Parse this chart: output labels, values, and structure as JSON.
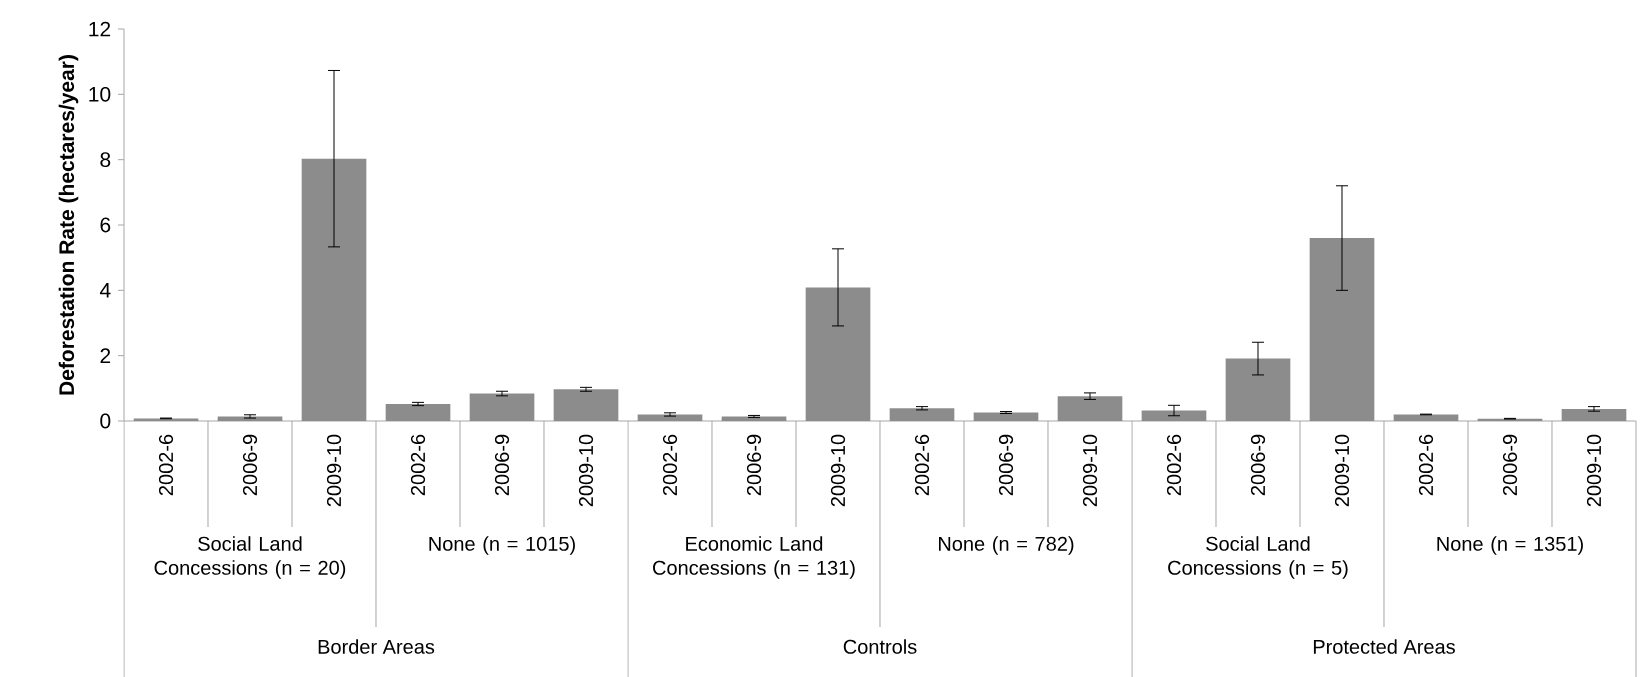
{
  "chart_data": {
    "type": "bar",
    "ylabel": "Deforestation Rate (hectares/year)",
    "categories": [
      "2002-6",
      "2006-9",
      "2009-10",
      "2002-6",
      "2006-9",
      "2009-10",
      "2002-6",
      "2006-9",
      "2009-10",
      "2002-6",
      "2006-9",
      "2009-10",
      "2002-6",
      "2006-9",
      "2009-10",
      "2002-6",
      "2006-9",
      "2009-10"
    ],
    "values": [
      0.08,
      0.14,
      8.03,
      0.52,
      0.84,
      0.97,
      0.2,
      0.14,
      4.09,
      0.39,
      0.26,
      0.76,
      0.32,
      1.91,
      5.6,
      0.2,
      0.07,
      0.37
    ],
    "errors": [
      0.01,
      0.05,
      2.7,
      0.05,
      0.07,
      0.06,
      0.05,
      0.03,
      1.18,
      0.05,
      0.03,
      0.1,
      0.16,
      0.5,
      1.6,
      0.01,
      0.01,
      0.07
    ],
    "color": "#8c8c8c",
    "ylim": [
      0,
      12
    ],
    "yticks": [
      0,
      2,
      4,
      6,
      8,
      10,
      12
    ],
    "annotations": [
      "Social Land Concessions (n = 20)",
      "None (n = 1015)",
      "Economic Land Concessions (n = 131)",
      "None (n = 782)",
      "Social Land Concessions (n = 5)",
      "None (n = 1351)",
      "Border Areas",
      "Controls",
      "Protected Areas"
    ]
  }
}
